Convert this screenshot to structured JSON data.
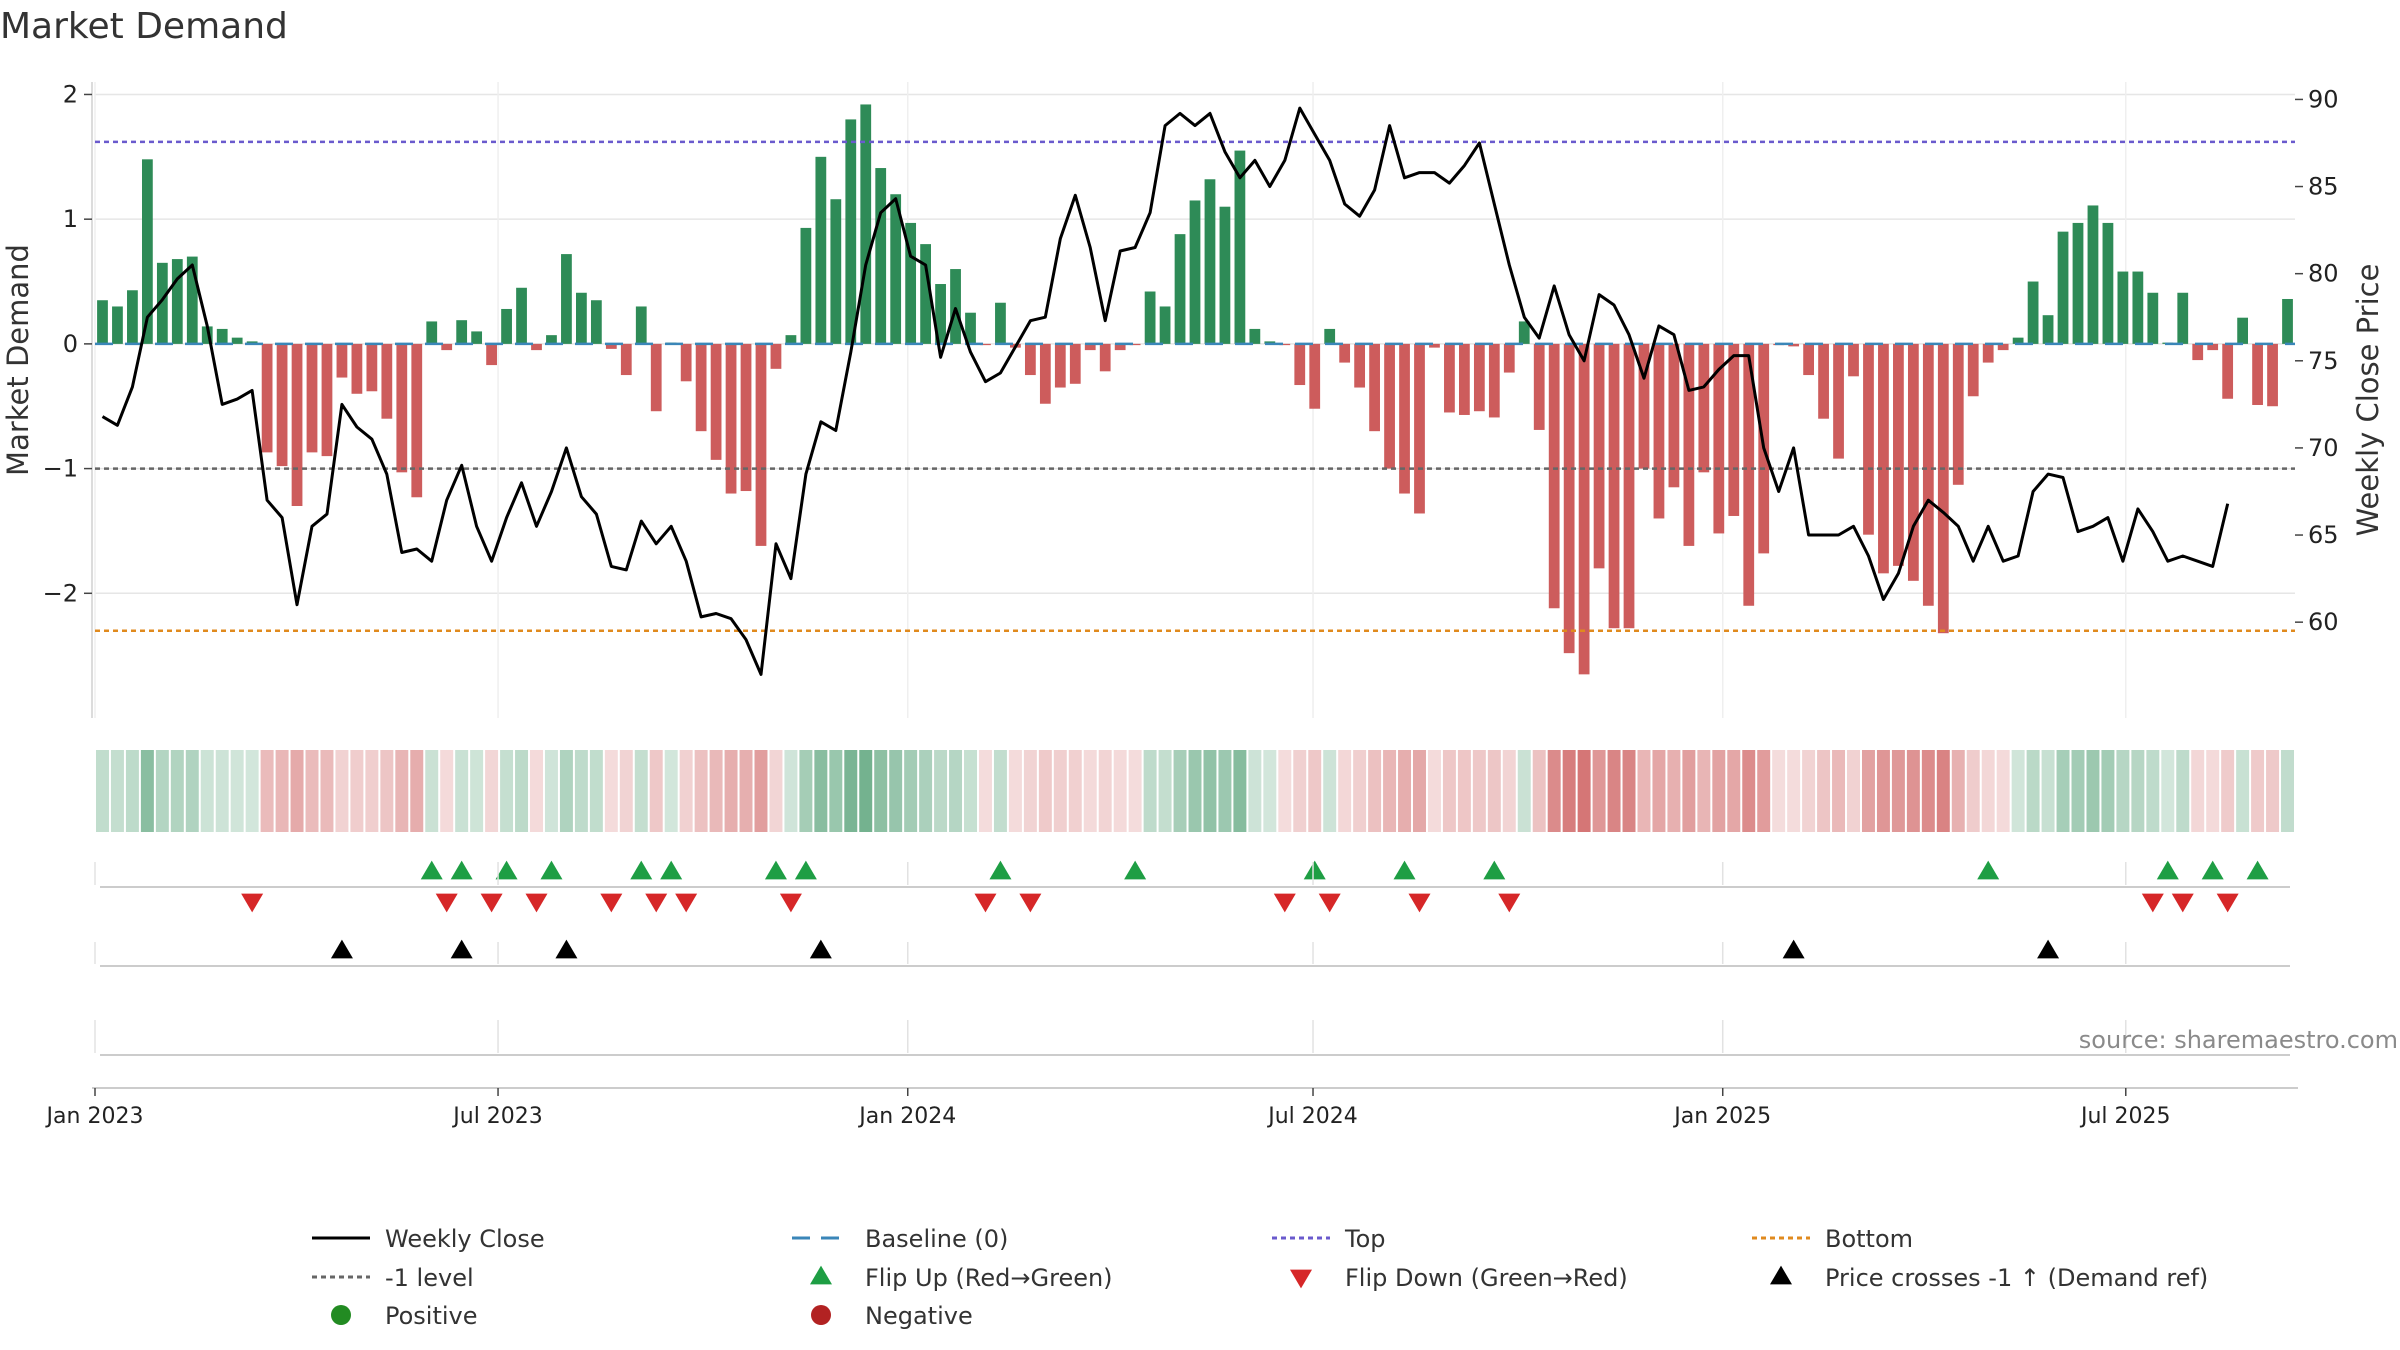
{
  "chart_data": {
    "type": "bar",
    "title": "Market Demand",
    "ylabel_left": "Market Demand",
    "ylabel_right": "Weekly Close Price",
    "xlabel": "",
    "ylim_left": [
      -3.0,
      2.1
    ],
    "ylim_right": [
      54.5,
      91.0
    ],
    "yticks_left": [
      2,
      1,
      0,
      -1,
      -2
    ],
    "yticks_left_labels": [
      "2",
      "1",
      "0",
      "−1",
      "−2"
    ],
    "yticks_right": [
      90,
      85,
      80,
      75,
      70,
      65,
      60
    ],
    "start_date": "2023-01-01",
    "end_date": "2025-09-15",
    "x_ticks": [
      "Jan 2023",
      "Jul 2023",
      "Jan 2024",
      "Jul 2024",
      "Jan 2025",
      "Jul 2025"
    ],
    "x_tick_dates": [
      "2023-01-01",
      "2023-07-01",
      "2024-01-01",
      "2024-07-01",
      "2025-01-01",
      "2025-07-01"
    ],
    "levels": {
      "baseline": 0,
      "top": 1.62,
      "minus_one": -1,
      "bottom": -2.3
    },
    "demand_values": [
      0.35,
      0.3,
      0.43,
      1.48,
      0.65,
      0.68,
      0.7,
      0.14,
      0.12,
      0.05,
      0.02,
      -0.87,
      -0.98,
      -1.3,
      -0.87,
      -0.9,
      -0.27,
      -0.4,
      -0.38,
      -0.6,
      -1.03,
      -1.23,
      0.18,
      -0.05,
      0.19,
      0.1,
      -0.17,
      0.28,
      0.45,
      -0.05,
      0.07,
      0.72,
      0.41,
      0.35,
      -0.04,
      -0.25,
      0.3,
      -0.54,
      0.01,
      -0.3,
      -0.7,
      -0.93,
      -1.2,
      -1.18,
      -1.62,
      -0.2,
      0.07,
      0.93,
      1.5,
      1.16,
      1.8,
      1.92,
      1.41,
      1.2,
      0.97,
      0.8,
      0.48,
      0.6,
      0.25,
      -0.01,
      0.33,
      -0.03,
      -0.25,
      -0.48,
      -0.35,
      -0.32,
      -0.05,
      -0.22,
      -0.05,
      -0.01,
      0.42,
      0.3,
      0.88,
      1.15,
      1.32,
      1.1,
      1.55,
      0.12,
      0.02,
      -0.01,
      -0.33,
      -0.52,
      0.12,
      -0.15,
      -0.35,
      -0.7,
      -1.0,
      -1.2,
      -1.36,
      -0.03,
      -0.55,
      -0.57,
      -0.54,
      -0.59,
      -0.23,
      0.18,
      -0.69,
      -2.12,
      -2.48,
      -2.65,
      -1.8,
      -2.28,
      -2.28,
      -1.0,
      -1.4,
      -1.15,
      -1.62,
      -1.03,
      -1.52,
      -1.38,
      -2.1,
      -1.68,
      -0.01,
      -0.02,
      -0.25,
      -0.6,
      -0.92,
      -0.26,
      -1.53,
      -1.84,
      -1.78,
      -1.9,
      -2.1,
      -2.32,
      -1.13,
      -0.42,
      -0.15,
      -0.05,
      0.05,
      0.5,
      0.23,
      0.9,
      0.97,
      1.11,
      0.97,
      0.58,
      0.58,
      0.41,
      0.01,
      0.41,
      -0.13,
      -0.05,
      -0.44,
      0.21,
      -0.49,
      -0.5,
      0.36
    ],
    "close_values": [
      71.8,
      71.3,
      73.5,
      77.5,
      78.5,
      79.7,
      80.5,
      77.0,
      72.5,
      72.8,
      73.3,
      67.0,
      66.0,
      61.0,
      65.5,
      66.2,
      72.5,
      71.2,
      70.5,
      68.5,
      64.0,
      64.2,
      63.5,
      67.0,
      69.0,
      65.5,
      63.5,
      66.0,
      68.0,
      65.5,
      67.5,
      70.0,
      67.2,
      66.2,
      63.2,
      63.0,
      65.8,
      64.5,
      65.5,
      63.5,
      60.3,
      60.5,
      60.2,
      59.0,
      57.0,
      64.5,
      62.5,
      68.5,
      71.5,
      71.0,
      75.5,
      80.5,
      83.5,
      84.3,
      81.0,
      80.5,
      75.2,
      78.0,
      75.5,
      73.8,
      74.3,
      75.8,
      77.3,
      77.5,
      82.0,
      84.5,
      81.5,
      77.3,
      81.3,
      81.5,
      83.5,
      88.5,
      89.2,
      88.5,
      89.2,
      87.0,
      85.5,
      86.5,
      85.0,
      86.5,
      89.5,
      88.0,
      86.5,
      84.0,
      83.3,
      84.8,
      88.5,
      85.5,
      85.8,
      85.8,
      85.2,
      86.2,
      87.5,
      84.0,
      80.5,
      77.5,
      76.3,
      79.3,
      76.5,
      75.0,
      78.8,
      78.2,
      76.5,
      74.0,
      77.0,
      76.5,
      73.3,
      73.5,
      74.5,
      75.3,
      75.3,
      70.0,
      67.5,
      70.0,
      65.0,
      65.0,
      65.0,
      65.5,
      63.8,
      61.3,
      62.8,
      65.5,
      67.0,
      66.3,
      65.5,
      63.5,
      65.5,
      63.5,
      63.8,
      67.5,
      68.5,
      68.3,
      65.2,
      65.5,
      66.0,
      63.5,
      66.5,
      65.2,
      63.5,
      63.8,
      63.5,
      63.2,
      66.8
    ],
    "flip_up_indices": [
      22,
      24,
      27,
      30,
      36,
      38,
      45,
      47,
      60,
      69,
      81,
      87,
      93,
      126,
      138,
      141,
      144
    ],
    "flip_down_indices": [
      10,
      23,
      26,
      29,
      34,
      37,
      39,
      46,
      59,
      62,
      79,
      82,
      88,
      94,
      137,
      139,
      142
    ],
    "price_cross_indices": [
      16,
      24,
      31,
      48,
      113,
      130
    ],
    "source": "source: sharemaestro.com",
    "legend": [
      {
        "label": "Weekly Close",
        "kind": "line-solid",
        "color": "#000000"
      },
      {
        "label": "Baseline (0)",
        "kind": "line-dash",
        "color": "#3a86b8"
      },
      {
        "label": "Top",
        "kind": "line-dot",
        "color": "#6a5acd"
      },
      {
        "label": "Bottom",
        "kind": "line-dot",
        "color": "#e08a1e"
      },
      {
        "label": "-1 level",
        "kind": "line-dot",
        "color": "#666666"
      },
      {
        "label": "Flip Up (Red→Green)",
        "kind": "tri-up",
        "color": "#1e9e44"
      },
      {
        "label": "Flip Down (Green→Red)",
        "kind": "tri-down",
        "color": "#d62728"
      },
      {
        "label": "Price crosses -1 ↑ (Demand ref)",
        "kind": "tri-up",
        "color": "#000000"
      },
      {
        "label": "Positive",
        "kind": "dot",
        "color": "#228b22"
      },
      {
        "label": "Negative",
        "kind": "dot",
        "color": "#b22222"
      }
    ],
    "colors": {
      "positive_bar": "#2e8b57",
      "negative_bar": "#cd5c5c",
      "close_line": "#000000",
      "flip_up": "#1e9e44",
      "flip_down": "#d62728",
      "price_cross": "#000000",
      "grid": "#e6e6e6"
    }
  }
}
